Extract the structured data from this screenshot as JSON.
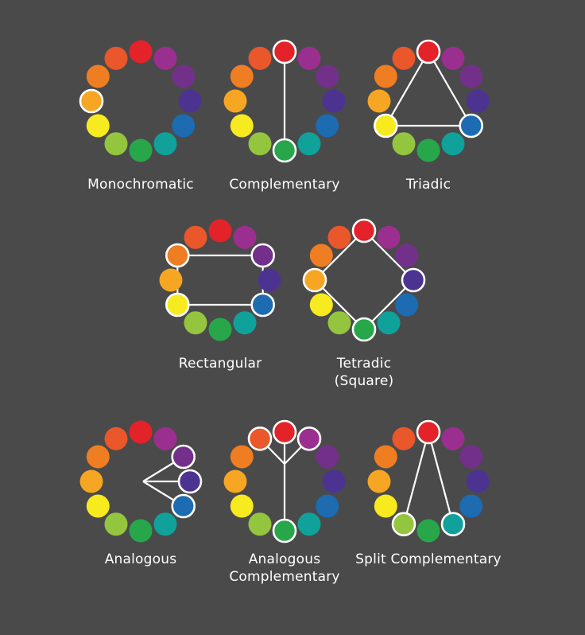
{
  "wheel_colors": [
    "#e42229",
    "#9a2f8f",
    "#73308a",
    "#4d3391",
    "#1d6bb1",
    "#10a19a",
    "#27a74a",
    "#94c53f",
    "#f7ea1f",
    "#f6a623",
    "#ef7d22",
    "#e9572a"
  ],
  "highlight_color": "#ffffff",
  "schemes": [
    {
      "key": "monochromatic",
      "label": [
        "Monochromatic"
      ],
      "highlighted": [
        9
      ],
      "connections": []
    },
    {
      "key": "complementary",
      "label": [
        "Complementary"
      ],
      "highlighted": [
        0,
        6
      ],
      "connections": [
        [
          0,
          6
        ]
      ]
    },
    {
      "key": "triadic",
      "label": [
        "Triadic"
      ],
      "highlighted": [
        0,
        4,
        8
      ],
      "connections": [
        [
          0,
          4
        ],
        [
          4,
          8
        ],
        [
          8,
          0
        ]
      ]
    },
    {
      "key": "rectangular",
      "label": [
        "Rectangular"
      ],
      "highlighted": [
        2,
        4,
        8,
        10
      ],
      "connections": [
        [
          2,
          4
        ],
        [
          4,
          8
        ],
        [
          8,
          10
        ],
        [
          10,
          2
        ]
      ]
    },
    {
      "key": "tetradic",
      "label": [
        "Tetradic",
        "(Square)"
      ],
      "highlighted": [
        0,
        3,
        6,
        9
      ],
      "connections": [
        [
          0,
          3
        ],
        [
          3,
          6
        ],
        [
          6,
          9
        ],
        [
          9,
          0
        ]
      ]
    },
    {
      "key": "analogous",
      "label": [
        "Analogous"
      ],
      "highlighted": [
        2,
        3,
        4
      ],
      "connections": [
        [
          "c",
          2
        ],
        [
          "c",
          3
        ],
        [
          "c",
          4
        ]
      ]
    },
    {
      "key": "analogous-complementary",
      "label": [
        "Analogous",
        "Complementary"
      ],
      "highlighted": [
        11,
        0,
        1,
        6
      ],
      "connections": [
        [
          6,
          "j"
        ],
        [
          "j",
          0
        ],
        [
          "j",
          11
        ],
        [
          "j",
          1
        ]
      ]
    },
    {
      "key": "split-complementary",
      "label": [
        "Split Complementary"
      ],
      "highlighted": [
        0,
        5,
        7
      ],
      "connections": [
        [
          0,
          5
        ],
        [
          0,
          7
        ]
      ]
    }
  ]
}
